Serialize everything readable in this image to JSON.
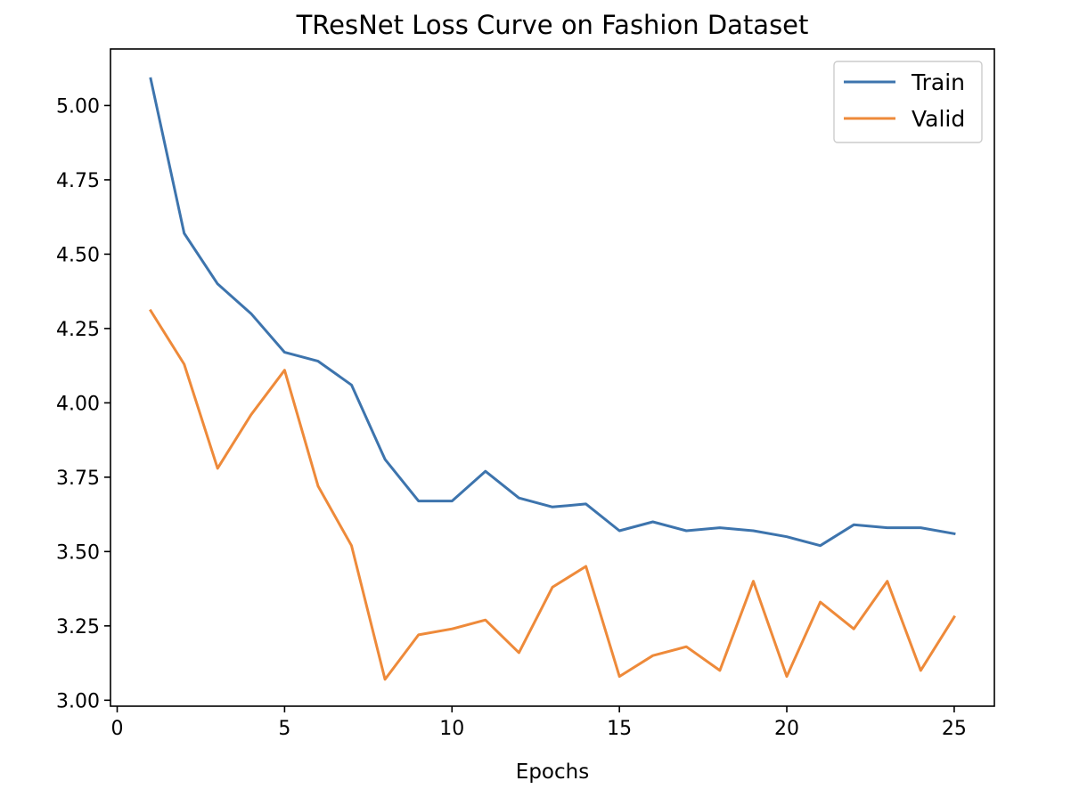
{
  "chart_data": {
    "type": "line",
    "title": "TResNet Loss Curve on Fashion Dataset",
    "xlabel": "Epochs",
    "ylabel": "",
    "xlim": [
      -0.2,
      26.2
    ],
    "ylim": [
      2.98,
      5.19
    ],
    "xticks": [
      0,
      5,
      10,
      15,
      20,
      25
    ],
    "xtick_labels": [
      "0",
      "5",
      "10",
      "15",
      "20",
      "25"
    ],
    "yticks": [
      3.0,
      3.25,
      3.5,
      3.75,
      4.0,
      4.25,
      4.5,
      4.75,
      5.0
    ],
    "ytick_labels": [
      "3.00",
      "3.25",
      "3.50",
      "3.75",
      "4.00",
      "4.25",
      "4.50",
      "4.75",
      "5.00"
    ],
    "legend_position": "top-right",
    "grid": false,
    "x": [
      1,
      2,
      3,
      4,
      5,
      6,
      7,
      8,
      9,
      10,
      11,
      12,
      13,
      14,
      15,
      16,
      17,
      18,
      19,
      20,
      21,
      22,
      23,
      24,
      25
    ],
    "series": [
      {
        "name": "Train",
        "color": "#3d74ad",
        "values": [
          5.09,
          4.57,
          4.4,
          4.3,
          4.17,
          4.14,
          4.06,
          3.81,
          3.67,
          3.67,
          3.77,
          3.68,
          3.65,
          3.66,
          3.57,
          3.6,
          3.57,
          3.58,
          3.57,
          3.55,
          3.52,
          3.59,
          3.58,
          3.58,
          3.56
        ]
      },
      {
        "name": "Valid",
        "color": "#ee8a3a",
        "values": [
          4.31,
          4.13,
          3.78,
          3.96,
          4.11,
          3.72,
          3.52,
          3.07,
          3.22,
          3.24,
          3.27,
          3.16,
          3.38,
          3.45,
          3.08,
          3.15,
          3.18,
          3.1,
          3.4,
          3.08,
          3.33,
          3.24,
          3.4,
          3.1,
          3.28
        ]
      }
    ]
  }
}
